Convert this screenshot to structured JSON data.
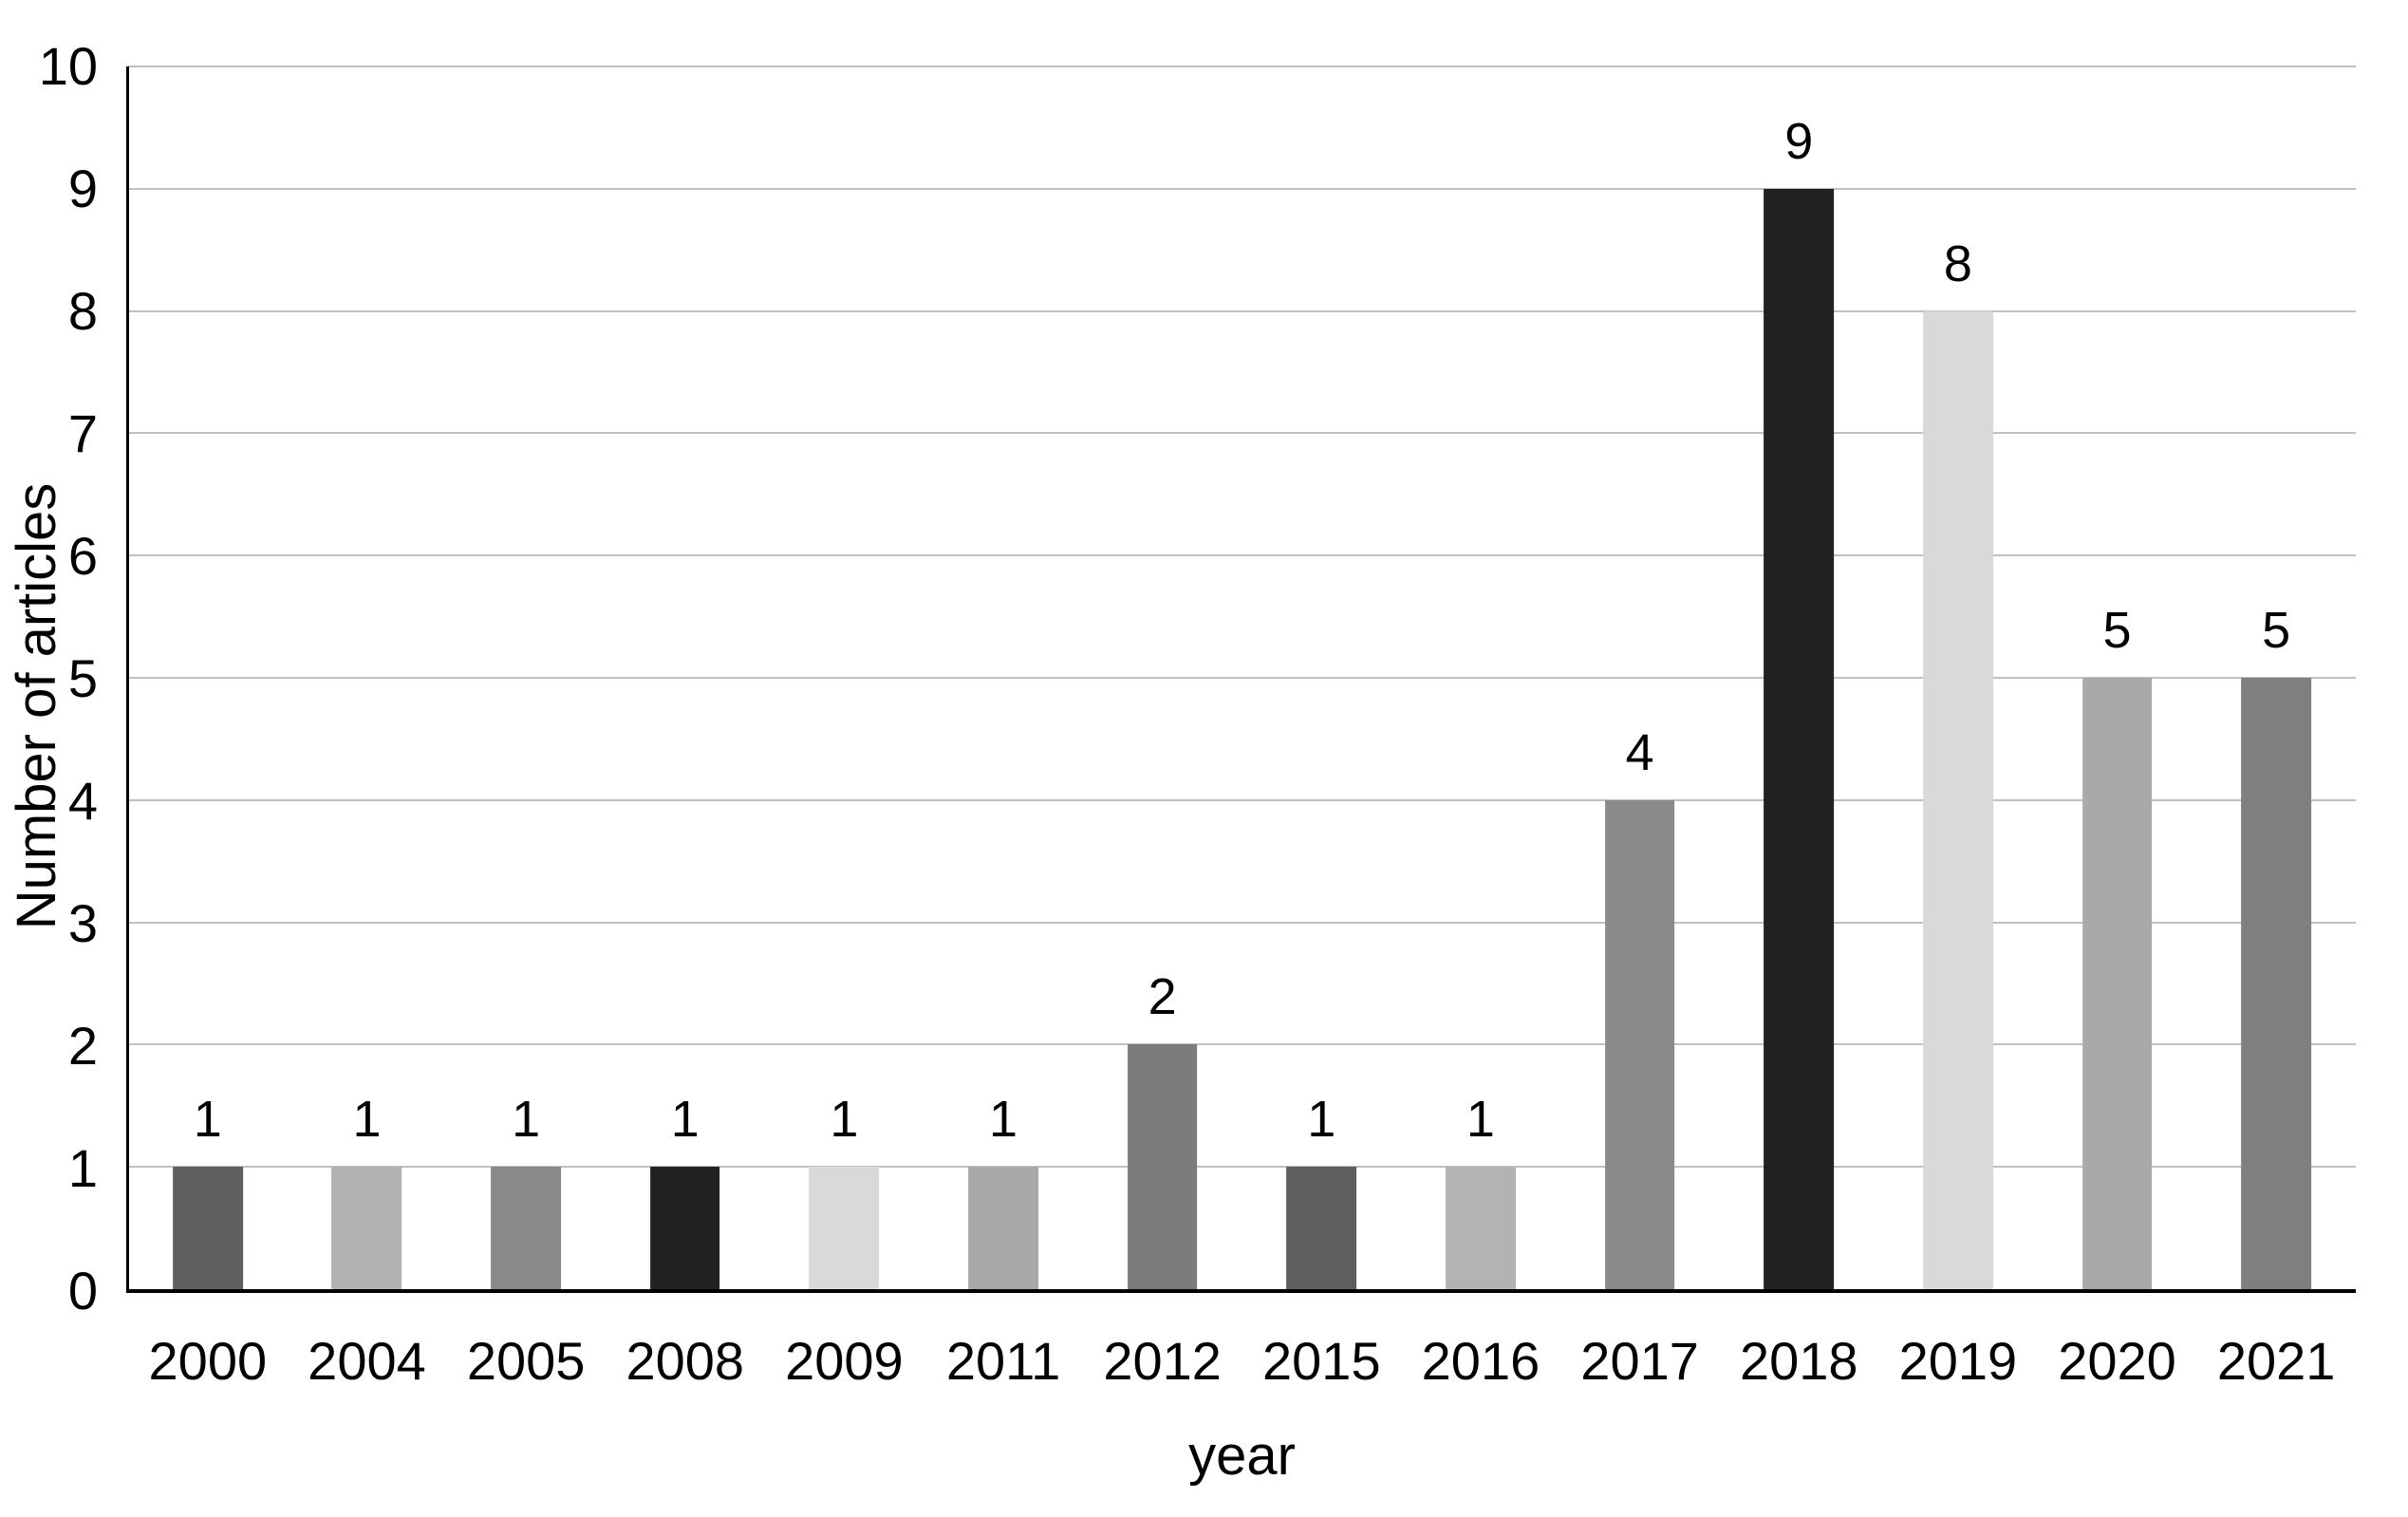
{
  "chart_data": {
    "type": "bar",
    "title": "",
    "xlabel": "year",
    "ylabel": "Number of articles",
    "categories": [
      "2000",
      "2004",
      "2005",
      "2008",
      "2009",
      "2011",
      "2012",
      "2015",
      "2016",
      "2017",
      "2018",
      "2019",
      "2020",
      "2021"
    ],
    "values": [
      1,
      1,
      1,
      1,
      1,
      1,
      2,
      1,
      1,
      4,
      9,
      8,
      5,
      5
    ],
    "data_labels": [
      "1",
      "1",
      "1",
      "1",
      "1",
      "1",
      "2",
      "1",
      "1",
      "4",
      "9",
      "8",
      "5",
      "5"
    ],
    "bar_colors": [
      "#5f5f5f",
      "#b2b2b2",
      "#898989",
      "#222222",
      "#d9d9d9",
      "#a9a9a9",
      "#7b7b7b",
      "#5e5e5e",
      "#b3b3b3",
      "#8a8a8a",
      "#212121",
      "#d9d9d9",
      "#a9a9a9",
      "#7f7f7f"
    ],
    "ylim": [
      0,
      10
    ],
    "ytick_step": 1,
    "ytick_labels": [
      "0",
      "1",
      "2",
      "3",
      "4",
      "5",
      "6",
      "7",
      "8",
      "9",
      "10"
    ],
    "grid": "horizontal",
    "gridline_color": "#c0c0c0",
    "axis_color": "#000000",
    "background_color": "#ffffff",
    "legend": "none"
  }
}
